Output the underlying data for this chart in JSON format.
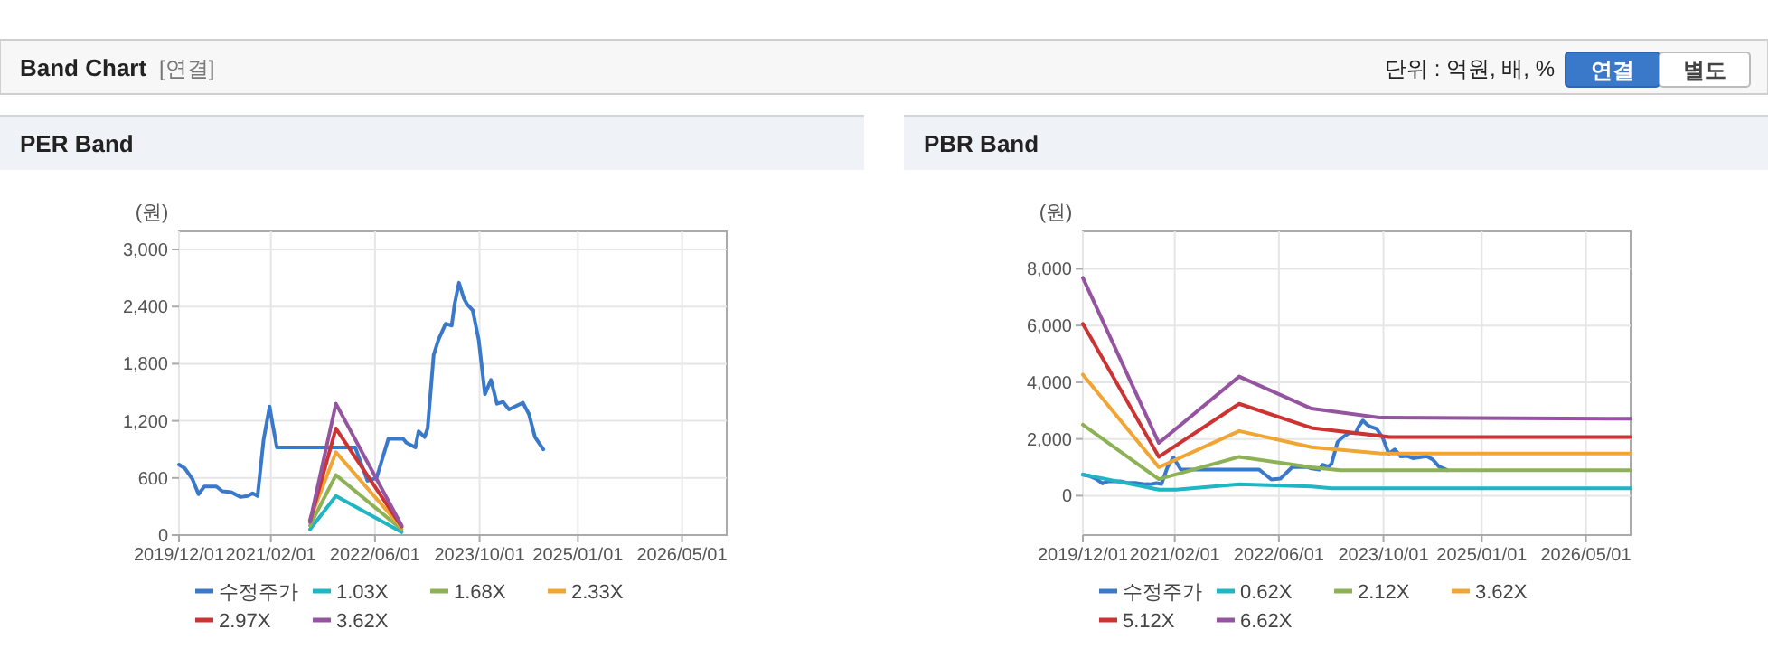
{
  "chart_data": [
    {
      "type": "other",
      "title": "Band Chart",
      "annotations": [
        "[연결]",
        "단위 : 억원, 배, %",
        "연결",
        "별도"
      ]
    },
    {
      "type": "line",
      "title": "PER Band",
      "ylabel": "(원)",
      "xlim": [
        "2019-12-01",
        "2026-11-25"
      ],
      "ylim": [
        0,
        3190
      ],
      "yticks": [
        {
          "value": 0,
          "label": "0"
        },
        {
          "value": 600,
          "label": "600"
        },
        {
          "value": 1200,
          "label": "1,200"
        },
        {
          "value": 1800,
          "label": "1,800"
        },
        {
          "value": 2400,
          "label": "2,400"
        },
        {
          "value": 3000,
          "label": "3,000"
        }
      ],
      "xticks": [
        {
          "value": "2019-12-01",
          "label": "2019/12/01"
        },
        {
          "value": "2021-02-01",
          "label": "2021/02/01"
        },
        {
          "value": "2022-06-01",
          "label": "2022/06/01"
        },
        {
          "value": "2023-10-01",
          "label": "2023/10/01"
        },
        {
          "value": "2025-01-01",
          "label": "2025/01/01"
        },
        {
          "value": "2026-05-01",
          "label": "2026/05/01"
        }
      ],
      "grid": true,
      "legend": "bottom",
      "marker": "none",
      "line_style": "solid",
      "series": [
        {
          "name": "수정주가",
          "color": "#3a78c9",
          "x": [
            "2019-12-01",
            "2019-12-29",
            "2020-02-01",
            "2020-03-01",
            "2020-03-28",
            "2020-05-23",
            "2020-06-20",
            "2020-08-01",
            "2020-09-13",
            "2020-10-16",
            "2020-11-08",
            "2020-12-01",
            "2020-12-29",
            "2021-01-26",
            "2021-02-07",
            "2021-03-01",
            "2022-03-01",
            "2022-04-27",
            "2022-06-08",
            "2022-08-02",
            "2022-10-11",
            "2022-10-25",
            "2022-12-06",
            "2022-12-21",
            "2023-01-18",
            "2023-02-01",
            "2023-03-01",
            "2023-03-23",
            "2023-04-26",
            "2023-05-24",
            "2023-06-07",
            "2023-06-27",
            "2023-07-19",
            "2023-08-02",
            "2023-08-30",
            "2023-09-27",
            "2023-10-26",
            "2023-11-23",
            "2023-12-21",
            "2024-01-18",
            "2024-02-15",
            "2024-03-14",
            "2024-04-20",
            "2024-05-18",
            "2024-06-15",
            "2024-07-24"
          ],
          "values": [
            740,
            700,
            590,
            430,
            510,
            510,
            460,
            450,
            400,
            410,
            440,
            410,
            1000,
            1350,
            1190,
            920,
            920,
            570,
            600,
            1010,
            1010,
            970,
            920,
            1090,
            1030,
            1120,
            1890,
            2050,
            2220,
            2200,
            2430,
            2650,
            2490,
            2430,
            2360,
            2050,
            1480,
            1630,
            1380,
            1400,
            1320,
            1350,
            1390,
            1270,
            1030,
            900
          ]
        },
        {
          "name": "1.03X",
          "color": "#1fb5c4",
          "x": [
            "2021-08-02",
            "2021-12-01",
            "2022-10-03"
          ],
          "values": [
            60,
            410,
            30
          ]
        },
        {
          "name": "1.68X",
          "color": "#8db255",
          "x": [
            "2021-08-02",
            "2021-12-01",
            "2022-10-03"
          ],
          "values": [
            100,
            630,
            60
          ]
        },
        {
          "name": "2.33X",
          "color": "#f0a535",
          "x": [
            "2021-08-02",
            "2021-12-01",
            "2022-10-03"
          ],
          "values": [
            160,
            870,
            80
          ]
        },
        {
          "name": "2.97X",
          "color": "#cc3333",
          "x": [
            "2021-08-02",
            "2021-12-01",
            "2022-10-03"
          ],
          "values": [
            140,
            1120,
            90
          ]
        },
        {
          "name": "3.62X",
          "color": "#9454a0",
          "x": [
            "2021-08-02",
            "2021-12-01",
            "2022-10-03"
          ],
          "values": [
            140,
            1380,
            100
          ]
        }
      ]
    },
    {
      "type": "line",
      "title": "PBR Band",
      "ylabel": "(원)",
      "xlim": [
        "2019-12-01",
        "2026-11-25"
      ],
      "ylim": [
        -1390,
        9320
      ],
      "yticks": [
        {
          "value": 0,
          "label": "0"
        },
        {
          "value": 2000,
          "label": "2,000"
        },
        {
          "value": 4000,
          "label": "4,000"
        },
        {
          "value": 6000,
          "label": "6,000"
        },
        {
          "value": 8000,
          "label": "8,000"
        }
      ],
      "xticks": [
        {
          "value": "2019-12-01",
          "label": "2019/12/01"
        },
        {
          "value": "2021-02-01",
          "label": "2021/02/01"
        },
        {
          "value": "2022-06-01",
          "label": "2022/06/01"
        },
        {
          "value": "2023-10-01",
          "label": "2023/10/01"
        },
        {
          "value": "2025-01-01",
          "label": "2025/01/01"
        },
        {
          "value": "2026-05-01",
          "label": "2026/05/01"
        }
      ],
      "grid": true,
      "legend": "bottom",
      "marker": "none",
      "line_style": "solid",
      "series": [
        {
          "name": "수정주가",
          "color": "#3a78c9",
          "x": [
            "2019-12-01",
            "2019-12-29",
            "2020-02-01",
            "2020-03-01",
            "2020-03-28",
            "2020-05-23",
            "2020-06-20",
            "2020-08-01",
            "2020-09-13",
            "2020-10-16",
            "2020-11-08",
            "2020-12-01",
            "2020-12-29",
            "2021-01-26",
            "2021-02-07",
            "2021-03-01",
            "2022-03-01",
            "2022-04-27",
            "2022-06-08",
            "2022-08-02",
            "2022-10-11",
            "2022-10-25",
            "2022-12-06",
            "2022-12-21",
            "2023-01-18",
            "2023-02-01",
            "2023-03-01",
            "2023-03-23",
            "2023-04-26",
            "2023-05-24",
            "2023-06-07",
            "2023-06-27",
            "2023-07-19",
            "2023-08-02",
            "2023-08-30",
            "2023-09-27",
            "2023-10-26",
            "2023-11-23",
            "2023-12-21",
            "2024-01-18",
            "2024-02-15",
            "2024-03-14",
            "2024-04-20",
            "2024-05-18",
            "2024-06-15",
            "2024-07-24"
          ],
          "values": [
            740,
            700,
            590,
            430,
            510,
            510,
            460,
            450,
            400,
            410,
            440,
            410,
            1000,
            1350,
            1190,
            920,
            920,
            570,
            600,
            1010,
            1010,
            970,
            920,
            1090,
            1030,
            1120,
            1890,
            2050,
            2220,
            2200,
            2430,
            2650,
            2490,
            2430,
            2360,
            2050,
            1480,
            1630,
            1380,
            1400,
            1320,
            1350,
            1390,
            1270,
            1030,
            900
          ]
        },
        {
          "name": "0.62X",
          "color": "#1fb5c4",
          "x": [
            "2019-12-01",
            "2020-11-19",
            "2021-02-07",
            "2021-11-28",
            "2022-10-31",
            "2023-02-01",
            "2026-11-25"
          ],
          "values": [
            750,
            210,
            210,
            400,
            320,
            260,
            260
          ]
        },
        {
          "name": "2.12X",
          "color": "#8db255",
          "x": [
            "2019-12-01",
            "2020-11-19",
            "2021-11-28",
            "2022-10-31",
            "2023-03-15",
            "2026-11-25"
          ],
          "values": [
            2500,
            580,
            1370,
            1000,
            900,
            900
          ]
        },
        {
          "name": "3.62X",
          "color": "#f0a535",
          "x": [
            "2019-12-01",
            "2020-11-19",
            "2021-11-28",
            "2022-10-31",
            "2023-09-18",
            "2026-11-25"
          ],
          "values": [
            4270,
            1000,
            2280,
            1710,
            1490,
            1490
          ]
        },
        {
          "name": "5.12X",
          "color": "#cc3333",
          "x": [
            "2019-12-01",
            "2020-11-19",
            "2021-11-28",
            "2022-10-31",
            "2023-10-30",
            "2026-11-25"
          ],
          "values": [
            6060,
            1370,
            3240,
            2390,
            2070,
            2070
          ]
        },
        {
          "name": "6.62X",
          "color": "#9454a0",
          "x": [
            "2019-12-01",
            "2020-11-19",
            "2021-11-28",
            "2022-10-31",
            "2023-09-18",
            "2026-11-25"
          ],
          "values": [
            7680,
            1860,
            4200,
            3070,
            2750,
            2710
          ]
        }
      ]
    }
  ]
}
